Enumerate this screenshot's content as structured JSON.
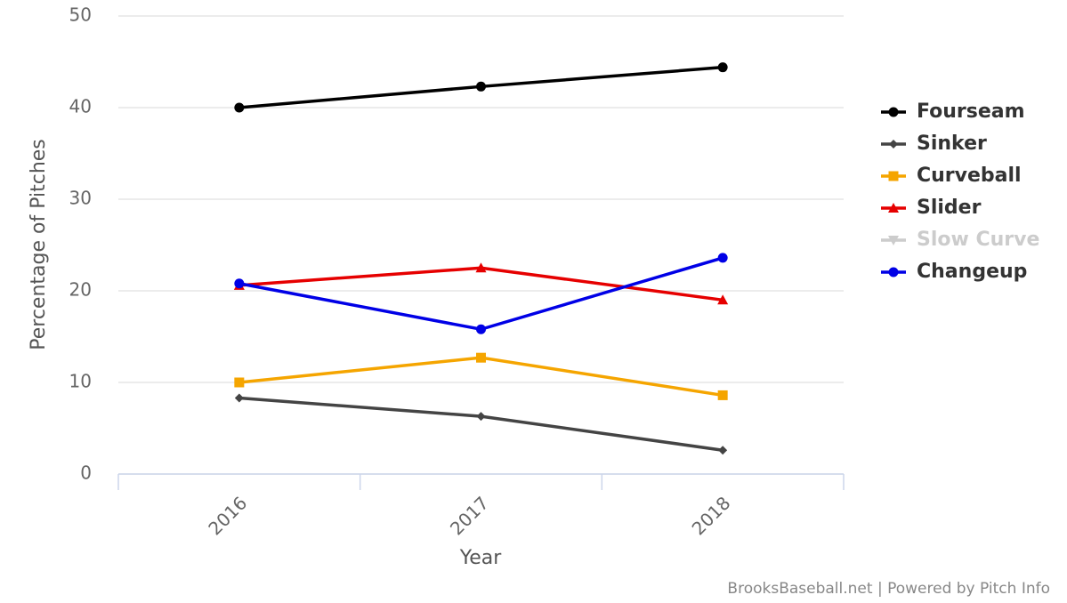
{
  "chart_data": {
    "type": "line",
    "x_label": "Year",
    "y_label": "Percentage of Pitches",
    "credits": "BrooksBaseball.net | Powered by Pitch Info",
    "categories": [
      "2016",
      "2017",
      "2018"
    ],
    "series": [
      {
        "name": "Fourseam",
        "color": "#000000",
        "marker": "circle",
        "values": [
          40.0,
          42.3,
          44.4
        ]
      },
      {
        "name": "Sinker",
        "color": "#444444",
        "marker": "diamond",
        "values": [
          8.3,
          6.3,
          2.6
        ]
      },
      {
        "name": "Curveball",
        "color": "#f5a500",
        "marker": "square",
        "values": [
          10.0,
          12.7,
          8.6
        ]
      },
      {
        "name": "Slider",
        "color": "#e60000",
        "marker": "triangle",
        "values": [
          20.6,
          22.5,
          19.0
        ]
      },
      {
        "name": "Slow Curve",
        "color": "#cccccc",
        "marker": "triangle-down",
        "hidden": true,
        "values": [
          null,
          null,
          null
        ]
      },
      {
        "name": "Changeup",
        "color": "#0000e6",
        "marker": "circle",
        "values": [
          20.8,
          15.8,
          23.6
        ]
      }
    ],
    "ylim": [
      0,
      50
    ],
    "yticks": [
      0,
      10,
      20,
      30,
      40,
      50
    ],
    "grid": true,
    "legend": "right"
  }
}
